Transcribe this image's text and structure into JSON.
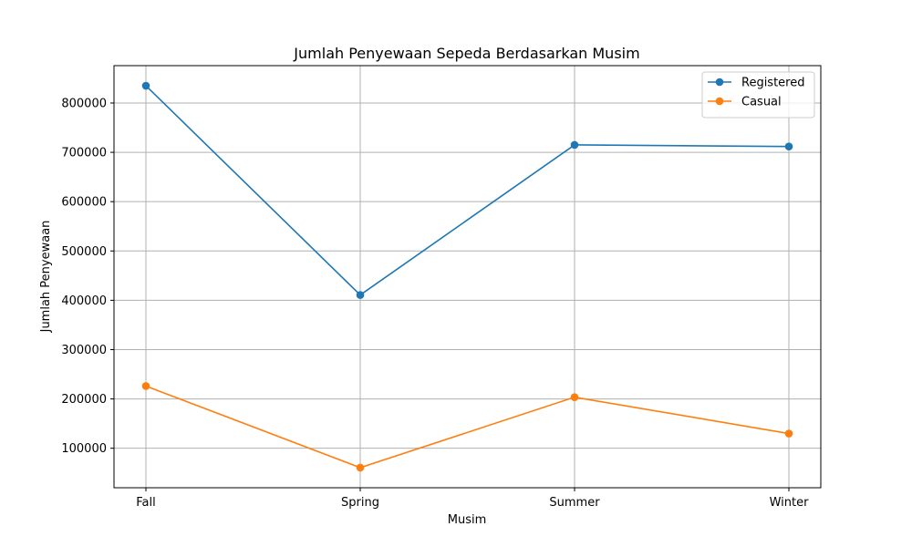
{
  "chart_data": {
    "type": "line",
    "title": "Jumlah Penyewaan Sepeda Berdasarkan Musim",
    "xlabel": "Musim",
    "ylabel": "Jumlah Penyewaan",
    "categories": [
      "Fall",
      "Spring",
      "Summer",
      "Winter"
    ],
    "series": [
      {
        "name": "Registered",
        "color": "#1f77b4",
        "values": [
          835038,
          410726,
          715067,
          711831
        ]
      },
      {
        "name": "Casual",
        "color": "#ff7f0e",
        "values": [
          226091,
          60622,
          203522,
          129782
        ]
      }
    ],
    "ylim": [
      19904,
      875756
    ],
    "yticks": [
      100000,
      200000,
      300000,
      400000,
      500000,
      600000,
      700000,
      800000
    ],
    "grid": true,
    "legend_position": "top-right",
    "marker": "circle"
  }
}
